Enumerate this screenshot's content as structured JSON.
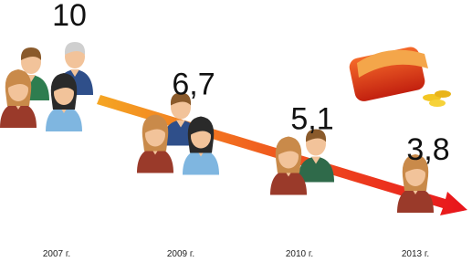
{
  "chart_data": {
    "type": "pictogram",
    "categories": [
      "2007 г.",
      "2009 г.",
      "2010 г.",
      "2013 г."
    ],
    "values": [
      10,
      6.7,
      5.1,
      3.8
    ],
    "value_labels": [
      "10",
      "6,7",
      "5,1",
      "3,8"
    ]
  }
}
